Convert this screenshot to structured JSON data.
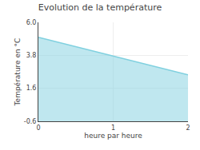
{
  "chart_data": {
    "type": "area",
    "title": "Evolution de la température",
    "xlabel": "heure par heure",
    "ylabel": "Température en °C",
    "x": [
      0,
      2
    ],
    "values": [
      5.0,
      2.5
    ],
    "color": "#7fd0df",
    "xlim": [
      0,
      2
    ],
    "ylim": [
      -0.6,
      6.0
    ],
    "xticks": [
      0,
      1,
      2
    ],
    "yticks": [
      -0.6,
      1.6,
      3.8,
      {
        "value": 6.0,
        "label": "6.0"
      }
    ],
    "grid": true
  }
}
